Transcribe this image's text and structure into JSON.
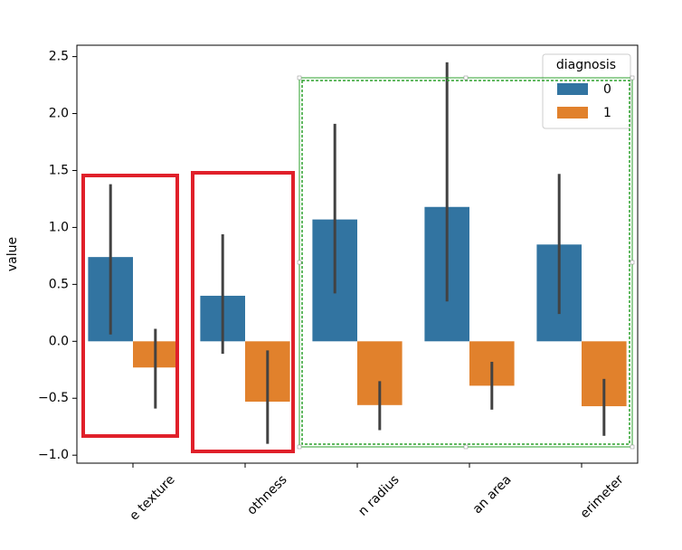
{
  "chart_data": {
    "type": "bar",
    "y_label": "value",
    "categories": [
      "e texture",
      "othness",
      "n radius",
      "an area",
      "erimeter"
    ],
    "series": [
      {
        "name": "0",
        "color": "#3274a1",
        "values": [
          0.74,
          0.4,
          1.07,
          1.18,
          0.85
        ],
        "ci": [
          [
            0.06,
            1.38
          ],
          [
            -0.11,
            0.94
          ],
          [
            0.42,
            1.91
          ],
          [
            0.35,
            2.45
          ],
          [
            0.24,
            1.47
          ]
        ]
      },
      {
        "name": "1",
        "color": "#e1812c",
        "values": [
          -0.23,
          -0.53,
          -0.56,
          -0.39,
          -0.57
        ],
        "ci": [
          [
            -0.59,
            0.11
          ],
          [
            -0.9,
            -0.08
          ],
          [
            -0.78,
            -0.35
          ],
          [
            -0.6,
            -0.18
          ],
          [
            -0.83,
            -0.33
          ]
        ]
      }
    ],
    "legend_title": "diagnosis",
    "legend": "upper right",
    "ylim": [
      -1.07,
      2.6
    ],
    "yticks": [
      {
        "value": -1.0,
        "label": "−1.0"
      },
      {
        "value": -0.5,
        "label": "−0.5"
      },
      {
        "value": 0.0,
        "label": "0.0"
      },
      0.5,
      {
        "value": 1.0,
        "label": "1.0"
      },
      1.5,
      {
        "value": 2.0,
        "label": "2.0"
      },
      2.5
    ],
    "grid": false
  }
}
